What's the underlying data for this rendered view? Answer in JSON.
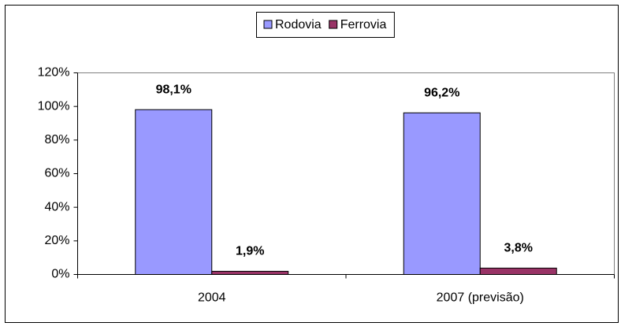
{
  "chart_data": {
    "type": "bar",
    "categories": [
      "2004",
      "2007 (previsão)"
    ],
    "series": [
      {
        "name": "Rodovia",
        "color": "#9999ff",
        "values": [
          98.1,
          96.2
        ],
        "value_labels": [
          "98,1%",
          "96,2%"
        ]
      },
      {
        "name": "Ferrovia",
        "color": "#993366",
        "values": [
          1.9,
          3.8
        ],
        "value_labels": [
          "1,9%",
          "3,8%"
        ]
      }
    ],
    "ylim": [
      0,
      120
    ],
    "yticks": [
      {
        "value": 0,
        "label": "0%"
      },
      {
        "value": 20,
        "label": "20%"
      },
      {
        "value": 40,
        "label": "40%"
      },
      {
        "value": 60,
        "label": "60%"
      },
      {
        "value": 80,
        "label": "80%"
      },
      {
        "value": 100,
        "label": "100%"
      },
      {
        "value": 120,
        "label": "120%"
      }
    ],
    "grid": false,
    "legend": "top"
  }
}
